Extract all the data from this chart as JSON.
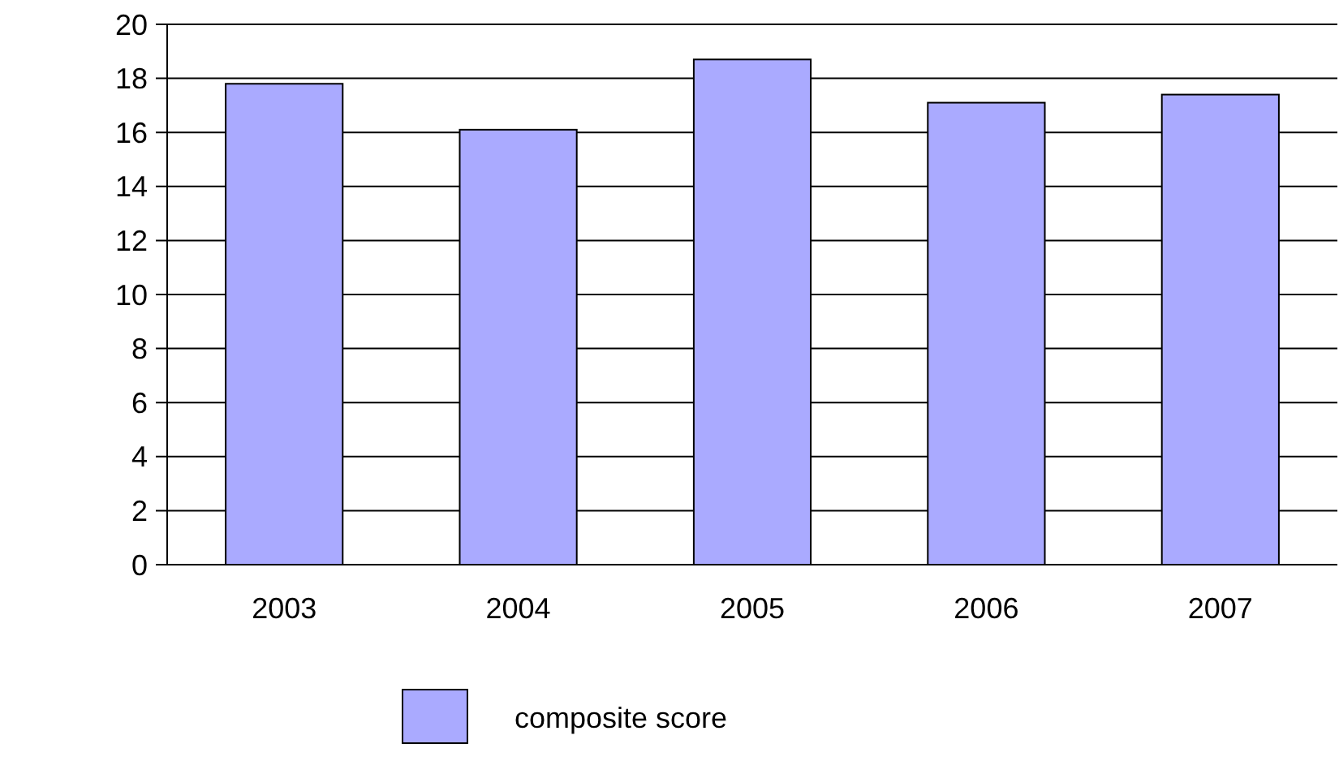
{
  "chart_data": {
    "type": "bar",
    "categories": [
      "2003",
      "2004",
      "2005",
      "2006",
      "2007"
    ],
    "series": [
      {
        "name": "composite score",
        "color": "#aaaaff",
        "values": [
          17.8,
          16.1,
          18.7,
          17.1,
          17.4
        ]
      }
    ],
    "ylim": [
      0,
      20
    ],
    "yticks": [
      0,
      2,
      4,
      6,
      8,
      10,
      12,
      14,
      16,
      18,
      20
    ],
    "grid": "y",
    "legend": "bottom"
  }
}
